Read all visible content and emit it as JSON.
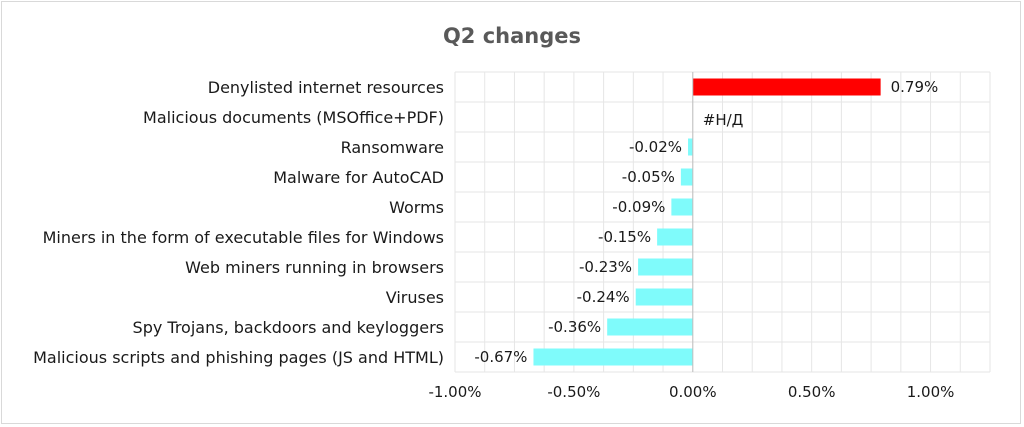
{
  "chart_data": {
    "type": "bar",
    "orientation": "horizontal",
    "title": "Q2 changes",
    "xlabel": "",
    "ylabel": "",
    "xlim": [
      -0.01,
      0.0125
    ],
    "grid": true,
    "legend": "none",
    "categories": [
      "Denylisted internet resources",
      "Malicious documents (MSOffice+PDF)",
      "Ransomware",
      "Malware for AutoCAD",
      "Worms",
      "Miners in the form of executable files for Windows",
      "Web miners running in browsers",
      "Viruses",
      "Spy Trojans, backdoors and keyloggers",
      "Malicious scripts and phishing pages (JS and HTML)"
    ],
    "values": [
      0.0079,
      null,
      -0.0002,
      -0.0005,
      -0.0009,
      -0.0015,
      -0.0023,
      -0.0024,
      -0.0036,
      -0.0067
    ],
    "data_labels": [
      "0.79%",
      "#Н/Д",
      "-0.02%",
      "-0.05%",
      "-0.09%",
      "-0.15%",
      "-0.23%",
      "-0.24%",
      "-0.36%",
      "-0.67%"
    ],
    "xticks": [
      -0.01,
      -0.005,
      0,
      0.005,
      0.01
    ],
    "xtick_labels": [
      "-1.00%",
      "-0.50%",
      "0.00%",
      "0.50%",
      "1.00%"
    ],
    "colors": {
      "positive": "#ff0000",
      "negative": "#7ffbfb",
      "grid": "#e6e6e6",
      "axis": "#bfbfbf"
    }
  }
}
